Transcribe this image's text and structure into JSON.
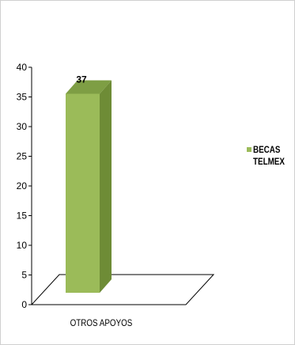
{
  "chart_data": {
    "type": "bar",
    "categories": [
      "OTROS APOYOS"
    ],
    "series": [
      {
        "name": "BECAS TELMEX",
        "values": [
          37
        ]
      }
    ],
    "data_labels": [
      "37"
    ],
    "ylim": [
      0,
      40
    ],
    "yticks": [
      "0",
      "5",
      "10",
      "15",
      "20",
      "25",
      "30",
      "35",
      "40"
    ],
    "title": "",
    "xlabel": "",
    "ylabel": "",
    "grid": false,
    "legend_position": "right",
    "colors": {
      "bar_front": "#9bbb59",
      "bar_side": "#6e8c36",
      "bar_top": "#7e9e44",
      "floor": "#ffffff",
      "axis": "#000000"
    },
    "style": "3d-column"
  }
}
